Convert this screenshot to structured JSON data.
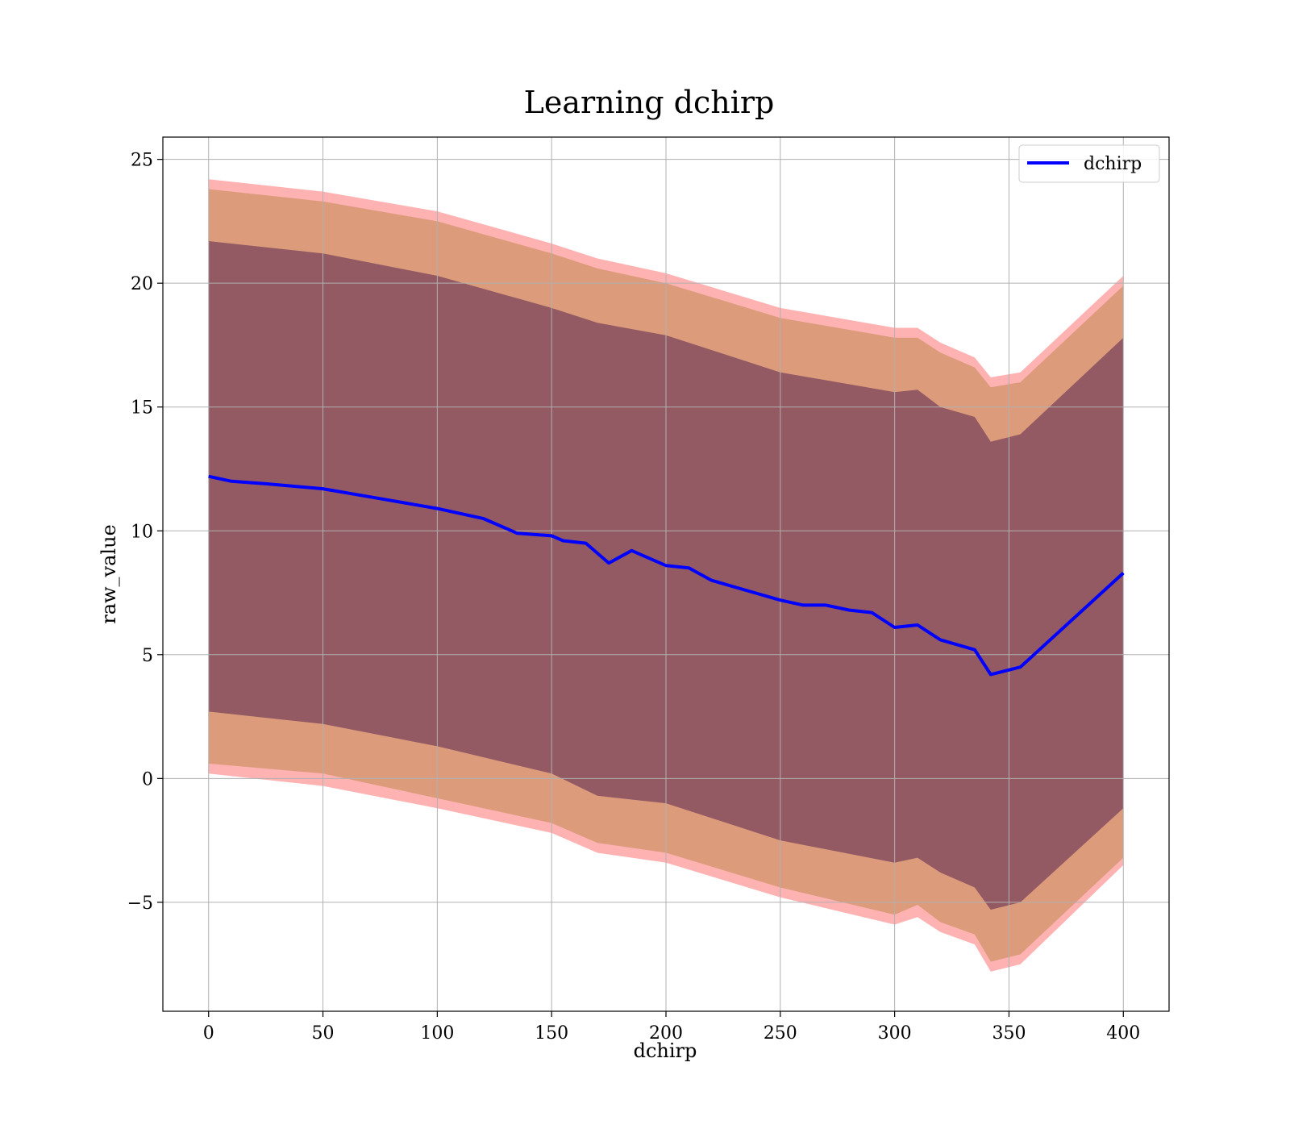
{
  "chart_data": {
    "type": "line",
    "title": "Learning dchirp",
    "xlabel": "dchirp",
    "ylabel": "raw_value",
    "xlim": [
      -20,
      420
    ],
    "ylim": [
      -9.4,
      25.9
    ],
    "xticks": [
      0,
      50,
      100,
      150,
      200,
      250,
      300,
      350,
      400
    ],
    "yticks": [
      -5,
      0,
      5,
      10,
      15,
      20,
      25
    ],
    "yticklabels": [
      "−5",
      "0",
      "5",
      "10",
      "15",
      "20",
      "25"
    ],
    "grid": true,
    "legend_position": "upper-right",
    "series": [
      {
        "name": "dchirp",
        "color": "#0000ff",
        "x": [
          0,
          10,
          25,
          50,
          75,
          100,
          120,
          125,
          135,
          150,
          155,
          165,
          175,
          185,
          200,
          210,
          220,
          235,
          250,
          260,
          270,
          280,
          290,
          300,
          310,
          320,
          335,
          342,
          355,
          400
        ],
        "y": [
          12.2,
          12.0,
          11.9,
          11.7,
          11.3,
          10.9,
          10.5,
          10.3,
          9.9,
          9.8,
          9.6,
          9.5,
          8.7,
          9.2,
          8.6,
          8.5,
          8.0,
          7.6,
          7.2,
          7.0,
          7.0,
          6.8,
          6.7,
          6.1,
          6.2,
          5.6,
          5.2,
          4.2,
          4.5,
          8.3
        ]
      }
    ],
    "bands": [
      {
        "role": "outer",
        "color": "#ff0000",
        "opacity": 0.3,
        "x": [
          0,
          50,
          100,
          150,
          170,
          200,
          250,
          300,
          310,
          320,
          335,
          342,
          355,
          400
        ],
        "lower": [
          0.2,
          -0.3,
          -1.2,
          -2.2,
          -3.0,
          -3.4,
          -4.8,
          -5.9,
          -5.6,
          -6.2,
          -6.7,
          -7.8,
          -7.5,
          -3.5
        ],
        "upper": [
          24.2,
          23.7,
          22.9,
          21.6,
          21.0,
          20.4,
          19.0,
          18.2,
          18.2,
          17.6,
          17.0,
          16.2,
          16.4,
          20.3
        ]
      },
      {
        "role": "middle",
        "color": "#8c6a00",
        "opacity": 0.3,
        "x": [
          0,
          50,
          100,
          150,
          170,
          200,
          250,
          300,
          310,
          320,
          335,
          342,
          355,
          400
        ],
        "lower": [
          0.6,
          0.2,
          -0.8,
          -1.8,
          -2.6,
          -3.0,
          -4.4,
          -5.5,
          -5.1,
          -5.8,
          -6.3,
          -7.4,
          -7.1,
          -3.2
        ],
        "upper": [
          23.8,
          23.3,
          22.5,
          21.2,
          20.6,
          20.0,
          18.6,
          17.8,
          17.8,
          17.2,
          16.6,
          15.8,
          16.0,
          19.9
        ]
      },
      {
        "role": "inner",
        "color": "#3a0a45",
        "opacity": 0.45,
        "x": [
          0,
          50,
          100,
          150,
          170,
          200,
          250,
          300,
          310,
          320,
          335,
          342,
          355,
          400
        ],
        "lower": [
          2.7,
          2.2,
          1.3,
          0.2,
          -0.7,
          -1.0,
          -2.5,
          -3.4,
          -3.2,
          -3.8,
          -4.4,
          -5.3,
          -5.0,
          -1.2
        ],
        "upper": [
          21.7,
          21.2,
          20.3,
          19.0,
          18.4,
          17.9,
          16.4,
          15.6,
          15.7,
          15.0,
          14.6,
          13.6,
          13.9,
          17.8
        ]
      }
    ]
  }
}
